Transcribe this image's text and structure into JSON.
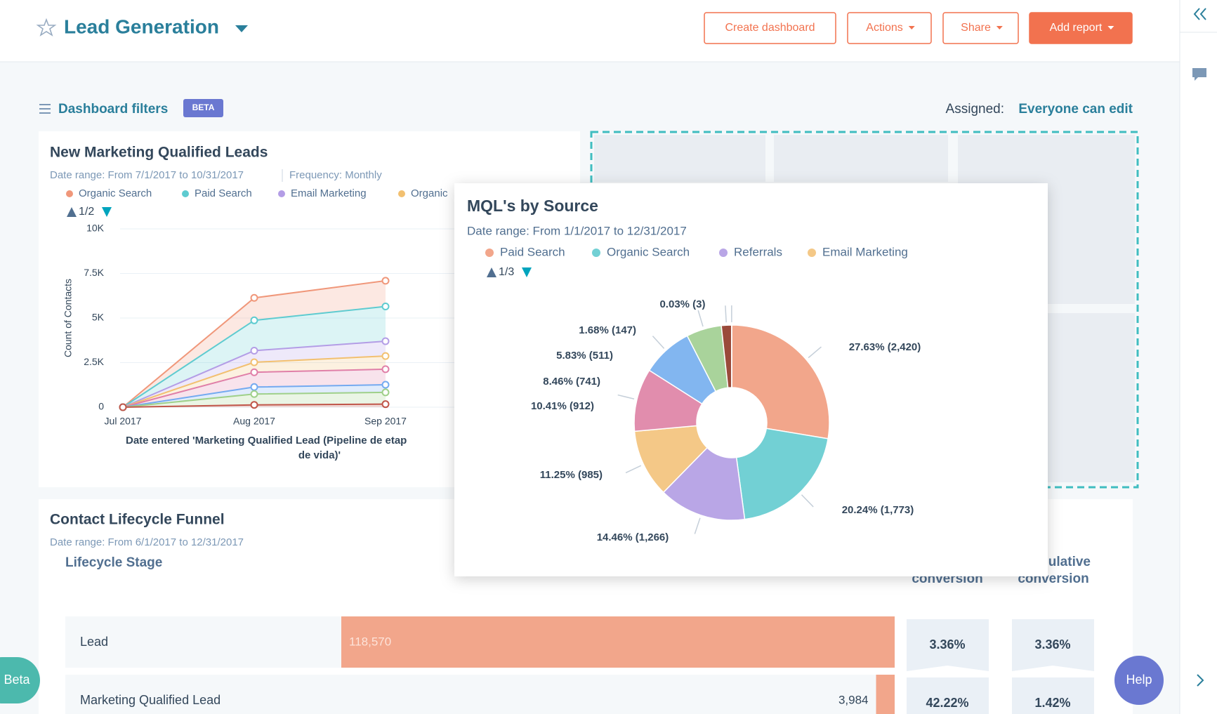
{
  "header": {
    "title": "Lead Generation",
    "buttons": [
      "Create dashboard",
      "Actions",
      "Share",
      "Add report"
    ]
  },
  "filters": {
    "label": "Dashboard filters",
    "badge": "BETA",
    "assigned_label": "Assigned:",
    "assigned_value": "Everyone can edit"
  },
  "widgets": {
    "beta": "Beta",
    "help": "Help"
  },
  "chart_data": [
    {
      "type": "area",
      "stacked": true,
      "title": "New Marketing Qualified Leads",
      "date_range": "Date range: From 7/1/2017 to 10/31/2017",
      "frequency": "Frequency: Monthly",
      "pager": "1/2",
      "y_label": "Count of Contacts",
      "x_label_lines": [
        "Date entered 'Marketing Qualified Lead (Pipeline de etap",
        "de vida)'"
      ],
      "categories": [
        "Jul 2017",
        "Aug 2017",
        "Sep 2017"
      ],
      "ylim": [
        0,
        10000
      ],
      "yticks": [
        0,
        {
          "value": 2500,
          "label": "2.5K"
        },
        {
          "value": 5000,
          "label": "5K"
        },
        {
          "value": 7500,
          "label": "7.5K"
        },
        {
          "value": 10000,
          "label": "10K"
        }
      ],
      "grid": true,
      "series": [
        {
          "name": "Organic Search",
          "color": "#f0977a",
          "values": [
            0,
            1260,
            1440
          ]
        },
        {
          "name": "Paid Search",
          "color": "#5ecbd0",
          "values": [
            0,
            1700,
            1950
          ]
        },
        {
          "name": "Email Marketing",
          "color": "#b39de6",
          "values": [
            0,
            650,
            830
          ]
        },
        {
          "name": "Organic",
          "color": "#f2c070",
          "values": [
            0,
            560,
            740
          ]
        },
        {
          "color": "#e07fa8",
          "values": [
            0,
            830,
            870
          ]
        },
        {
          "color": "#74aaf0",
          "values": [
            0,
            390,
            430
          ]
        },
        {
          "color": "#9fd08a",
          "values": [
            0,
            610,
            660
          ]
        },
        {
          "color": "#c0564a",
          "values": [
            0,
            130,
            170
          ]
        }
      ]
    },
    {
      "type": "pie",
      "donut": true,
      "title": "MQL's by Source",
      "date_range": "Date range: From 1/1/2017 to 12/31/2017",
      "pager": "1/3",
      "categories": [
        "Paid Search",
        "Organic Search",
        "Referrals",
        "Email Marketing",
        null,
        null,
        null,
        null,
        null
      ],
      "values": [
        27.63,
        20.24,
        14.46,
        11.25,
        10.41,
        8.46,
        5.83,
        1.68,
        0.03
      ],
      "value_labels": [
        "27.63% (2,420)",
        "20.24% (1,773)",
        "14.46% (1,266)",
        "11.25% (985)",
        "10.41% (912)",
        "8.46% (741)",
        "5.83% (511)",
        "1.68% (147)",
        "0.03% (3)"
      ],
      "colors": [
        "#f2a68b",
        "#72d0d4",
        "#b9a6e6",
        "#f4c887",
        "#e18dad",
        "#82b6f0",
        "#a9d39b",
        "#9a4a3a",
        "#555555"
      ]
    },
    {
      "type": "funnel",
      "title": "Contact Lifecycle Funnel",
      "date_range": "Date range: From 6/1/2017 to 12/31/2017",
      "stage_header": "Lifecycle Stage",
      "conversion_header": "conversion",
      "cumulative_header": [
        "ulative",
        "conversion"
      ],
      "categories": [
        "Lead",
        "Marketing Qualified Lead"
      ],
      "values": [
        118570,
        3984
      ],
      "value_labels": [
        "118,570",
        "3,984"
      ],
      "color": "#f2a68b",
      "conversion": [
        "3.36%",
        "42.22%"
      ],
      "cumulative": [
        "3.36%",
        "1.42%"
      ]
    }
  ]
}
